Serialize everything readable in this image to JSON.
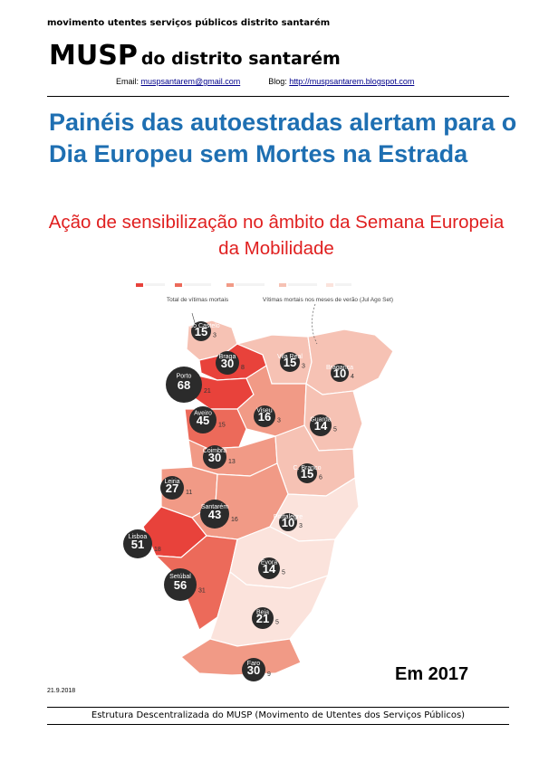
{
  "header": {
    "org_line": "movimento utentes serviços públicos distrito santarém",
    "brand_big": "MUSP",
    "brand_small": "do distrito santarém",
    "email_label": "Email:",
    "email": "muspsantarem@gmail.com",
    "blog_label": "Blog:",
    "blog": "http://muspsantarem.blogspot.com"
  },
  "article": {
    "headline": "Painéis das autoestradas alertam para o Dia Europeu sem Mortes na Estrada",
    "subhead": "Ação de sensibilização no âmbito da Semana Europeia da Mobilidade",
    "year_label": "Em 2017",
    "date": "21.9.2018"
  },
  "map": {
    "legend_colors": [
      "#e8423b",
      "#ec6a5a",
      "#f19a86",
      "#f6c2b4",
      "#fbe3dc"
    ],
    "total_label": "Total de vítimas mortais",
    "summer_label": "Vítimas mortais nos meses de verão (Jul Ago Set)",
    "districts": [
      {
        "name": "V. do Castelo",
        "total": "15",
        "summer": "3"
      },
      {
        "name": "Braga",
        "total": "30",
        "summer": "8"
      },
      {
        "name": "Vila Real",
        "total": "15",
        "summer": "3"
      },
      {
        "name": "Bragança",
        "total": "10",
        "summer": "4"
      },
      {
        "name": "Porto",
        "total": "68",
        "summer": "21"
      },
      {
        "name": "Viseu",
        "total": "16",
        "summer": "3"
      },
      {
        "name": "Aveiro",
        "total": "45",
        "summer": "15"
      },
      {
        "name": "Guarda",
        "total": "14",
        "summer": "5"
      },
      {
        "name": "Coimbra",
        "total": "30",
        "summer": "13"
      },
      {
        "name": "C. Branco",
        "total": "15",
        "summer": "6"
      },
      {
        "name": "Leiria",
        "total": "27",
        "summer": "11"
      },
      {
        "name": "Santarém",
        "total": "43",
        "summer": "16"
      },
      {
        "name": "Portalegre",
        "total": "10",
        "summer": "3"
      },
      {
        "name": "Lisboa",
        "total": "51",
        "summer": "18"
      },
      {
        "name": "Évora",
        "total": "14",
        "summer": "5"
      },
      {
        "name": "Setúbal",
        "total": "56",
        "summer": "31"
      },
      {
        "name": "Beja",
        "total": "21",
        "summer": "5"
      },
      {
        "name": "Faro",
        "total": "30",
        "summer": "9"
      }
    ]
  },
  "footer": {
    "text": "Estrutura Descentralizada do MUSP (Movimento de Utentes dos Serviços Públicos)"
  }
}
